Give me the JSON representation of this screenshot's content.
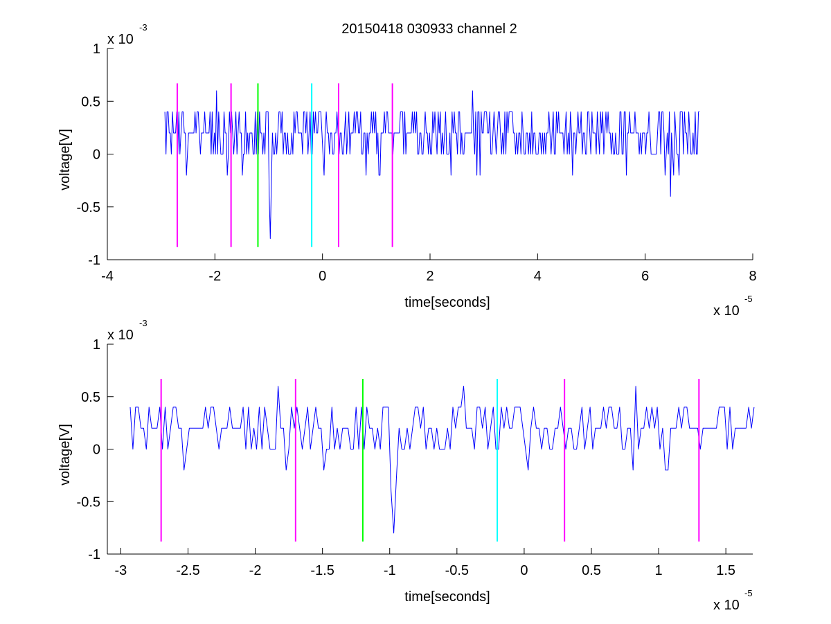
{
  "figure": {
    "title": "20150418 030933 channel 2"
  },
  "chart_data": [
    {
      "type": "line",
      "xlabel": "time[seconds]",
      "ylabel": "voltage[V]",
      "xlim": [
        -4,
        8
      ],
      "ylim": [
        -1,
        1
      ],
      "x_ticks": [
        "-4",
        "-2",
        "0",
        "2",
        "4",
        "6",
        "8"
      ],
      "y_ticks": [
        "-1",
        "-0.5",
        "0",
        "0.5",
        "1"
      ],
      "x_exponent": "x 10",
      "x_exponent_power": "-5",
      "y_exponent": "x 10",
      "y_exponent_power": "-3",
      "grid": false,
      "signal": {
        "color": "#0000ff",
        "x_start": -2.93,
        "x_end": 7.0,
        "sample_step": 0.02,
        "levels": [
          -0.2,
          0,
          0.2,
          0.4
        ],
        "notable_excursions": [
          {
            "x": -0.97,
            "y": -0.8
          },
          {
            "x": 6.47,
            "y": -0.4
          },
          {
            "x": -1.97,
            "y": 0.6
          },
          {
            "x": 2.8,
            "y": 0.6
          }
        ]
      },
      "markers": [
        {
          "x": -2.7,
          "color": "#ff00ff",
          "y_range": [
            -0.88,
            0.67
          ]
        },
        {
          "x": -1.7,
          "color": "#ff00ff",
          "y_range": [
            -0.88,
            0.67
          ]
        },
        {
          "x": -1.2,
          "color": "#00ff00",
          "y_range": [
            -0.88,
            0.67
          ]
        },
        {
          "x": -0.2,
          "color": "#00ffff",
          "y_range": [
            -0.88,
            0.67
          ]
        },
        {
          "x": 0.3,
          "color": "#ff00ff",
          "y_range": [
            -0.88,
            0.67
          ]
        },
        {
          "x": 1.3,
          "color": "#ff00ff",
          "y_range": [
            -0.88,
            0.67
          ]
        }
      ]
    },
    {
      "type": "line",
      "xlabel": "time[seconds]",
      "ylabel": "voltage[V]",
      "xlim": [
        -3.1,
        1.7
      ],
      "ylim": [
        -1,
        1
      ],
      "x_ticks": [
        "-3",
        "-2.5",
        "-2",
        "-1.5",
        "-1",
        "-0.5",
        "0",
        "0.5",
        "1",
        "1.5"
      ],
      "y_ticks": [
        "-1",
        "-0.5",
        "0",
        "0.5",
        "1"
      ],
      "x_exponent": "x 10",
      "x_exponent_power": "-5",
      "y_exponent": "x 10",
      "y_exponent_power": "-3",
      "grid": false,
      "signal": {
        "color": "#0000ff",
        "x_start": -2.93,
        "x_end": 1.7,
        "sample_step": 0.02,
        "levels": [
          -0.2,
          0,
          0.2,
          0.4
        ],
        "notable_excursions": [
          {
            "x": -0.97,
            "y": -0.8
          },
          {
            "x": -1.82,
            "y": 0.6
          },
          {
            "x": 0.83,
            "y": 0.6
          },
          {
            "x": -0.45,
            "y": 0.6
          }
        ]
      },
      "markers": [
        {
          "x": -2.7,
          "color": "#ff00ff",
          "y_range": [
            -0.88,
            0.67
          ]
        },
        {
          "x": -1.7,
          "color": "#ff00ff",
          "y_range": [
            -0.88,
            0.67
          ]
        },
        {
          "x": -1.2,
          "color": "#00ff00",
          "y_range": [
            -0.88,
            0.67
          ]
        },
        {
          "x": -0.2,
          "color": "#00ffff",
          "y_range": [
            -0.88,
            0.67
          ]
        },
        {
          "x": 0.3,
          "color": "#ff00ff",
          "y_range": [
            -0.88,
            0.67
          ]
        },
        {
          "x": 1.3,
          "color": "#ff00ff",
          "y_range": [
            -0.88,
            0.67
          ]
        }
      ]
    }
  ]
}
